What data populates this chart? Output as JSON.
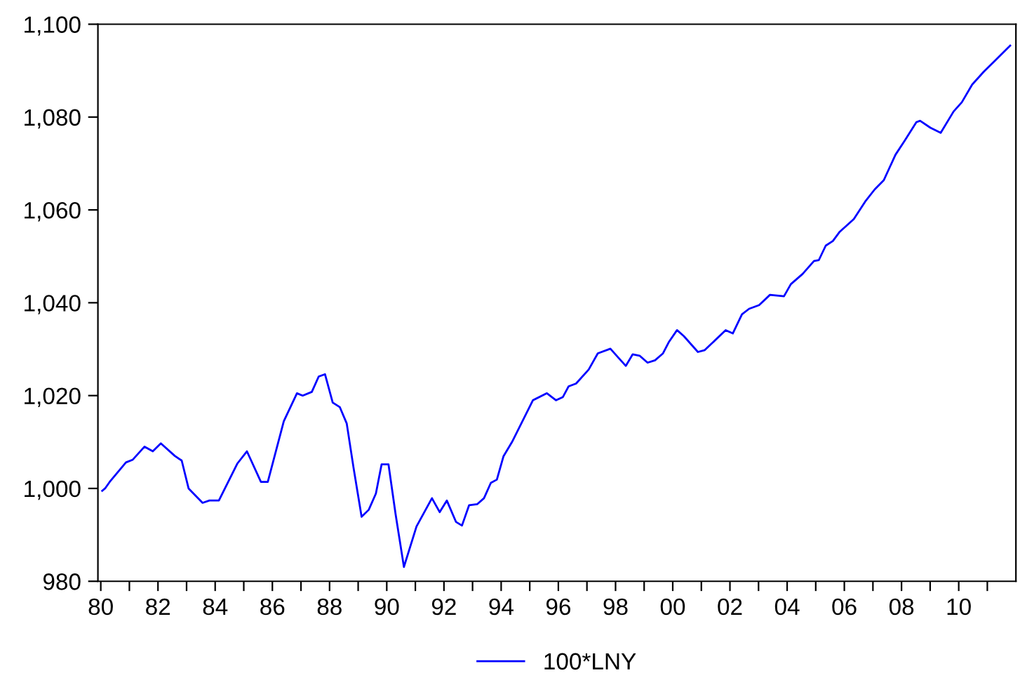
{
  "chart_data": {
    "type": "line",
    "legend": "bottom",
    "grid": false,
    "marker": "none",
    "line_style": "solid",
    "xlim": [
      1979.9,
      2012
    ],
    "ylim": [
      980,
      1100
    ],
    "xticks": [
      {
        "value": 1980,
        "label": "80"
      },
      {
        "value": 1981,
        "label": null
      },
      {
        "value": 1982,
        "label": "82"
      },
      {
        "value": 1983,
        "label": null
      },
      {
        "value": 1984,
        "label": "84"
      },
      {
        "value": 1985,
        "label": null
      },
      {
        "value": 1986,
        "label": "86"
      },
      {
        "value": 1987,
        "label": null
      },
      {
        "value": 1988,
        "label": "88"
      },
      {
        "value": 1989,
        "label": null
      },
      {
        "value": 1990,
        "label": "90"
      },
      {
        "value": 1991,
        "label": null
      },
      {
        "value": 1992,
        "label": "92"
      },
      {
        "value": 1993,
        "label": null
      },
      {
        "value": 1994,
        "label": "94"
      },
      {
        "value": 1995,
        "label": null
      },
      {
        "value": 1996,
        "label": "96"
      },
      {
        "value": 1997,
        "label": null
      },
      {
        "value": 1998,
        "label": "98"
      },
      {
        "value": 1999,
        "label": null
      },
      {
        "value": 2000,
        "label": "00"
      },
      {
        "value": 2001,
        "label": null
      },
      {
        "value": 2002,
        "label": "02"
      },
      {
        "value": 2003,
        "label": null
      },
      {
        "value": 2004,
        "label": "04"
      },
      {
        "value": 2005,
        "label": null
      },
      {
        "value": 2006,
        "label": "06"
      },
      {
        "value": 2007,
        "label": null
      },
      {
        "value": 2008,
        "label": "08"
      },
      {
        "value": 2009,
        "label": null
      },
      {
        "value": 2010,
        "label": "10"
      },
      {
        "value": 2011,
        "label": null
      }
    ],
    "yticks": [
      {
        "value": 980,
        "label": "980"
      },
      {
        "value": 1000,
        "label": "1,000"
      },
      {
        "value": 1020,
        "label": "1,020"
      },
      {
        "value": 1040,
        "label": "1,040"
      },
      {
        "value": 1060,
        "label": "1,060"
      },
      {
        "value": 1080,
        "label": "1,080"
      },
      {
        "value": 1100,
        "label": "1,100"
      }
    ],
    "series": [
      {
        "name": "100*LNY",
        "color": "#0000ff",
        "x": [
          1980.05,
          1980.15,
          1980.31,
          1980.88,
          1981.12,
          1981.53,
          1981.82,
          1982.1,
          1982.59,
          1982.83,
          1983.07,
          1983.56,
          1983.8,
          1984.13,
          1984.78,
          1985.11,
          1985.6,
          1985.84,
          1986.4,
          1986.86,
          1987.06,
          1987.38,
          1987.62,
          1987.84,
          1988.11,
          1988.36,
          1988.6,
          1988.84,
          1989.12,
          1989.37,
          1989.62,
          1989.82,
          1990.06,
          1990.31,
          1990.6,
          1991.04,
          1991.58,
          1991.85,
          1992.1,
          1992.42,
          1992.63,
          1992.88,
          1993.16,
          1993.4,
          1993.64,
          1993.85,
          1994.08,
          1994.38,
          1995.11,
          1995.6,
          1995.92,
          1996.16,
          1996.36,
          1996.62,
          1997.06,
          1997.38,
          1997.82,
          1998.11,
          1998.36,
          1998.6,
          1998.84,
          1999.12,
          1999.38,
          1999.66,
          1999.87,
          2000.15,
          2000.39,
          2000.88,
          2001.12,
          2001.85,
          2002.1,
          2002.42,
          2002.67,
          2003.02,
          2003.4,
          2003.89,
          2004.13,
          2004.54,
          2004.94,
          2005.11,
          2005.35,
          2005.6,
          2005.84,
          2006.33,
          2006.73,
          2007.06,
          2007.38,
          2007.79,
          2008.11,
          2008.52,
          2008.65,
          2009.01,
          2009.37,
          2009.82,
          2010.11,
          2010.47,
          2010.88,
          2011.28,
          2011.8
        ],
        "values": [
          999.5,
          1000.0,
          1001.4,
          1005.6,
          1006.2,
          1009.0,
          1008.0,
          1009.7,
          1007.0,
          1006.0,
          1000.0,
          996.9,
          997.4,
          997.4,
          1005.4,
          1008.0,
          1001.4,
          1001.4,
          1014.5,
          1020.5,
          1020.0,
          1020.8,
          1024.1,
          1024.6,
          1018.5,
          1017.5,
          1014.0,
          1004.4,
          993.9,
          995.4,
          998.9,
          1005.2,
          1005.2,
          994.4,
          983.1,
          991.8,
          997.9,
          994.9,
          997.4,
          992.8,
          992.0,
          996.4,
          996.6,
          997.9,
          1001.2,
          1001.9,
          1006.9,
          1010.0,
          1019.0,
          1020.5,
          1019.0,
          1019.7,
          1022.0,
          1022.6,
          1025.6,
          1029.1,
          1030.1,
          1028.1,
          1026.4,
          1028.9,
          1028.6,
          1027.1,
          1027.6,
          1029.1,
          1031.6,
          1034.1,
          1032.8,
          1029.4,
          1029.8,
          1034.1,
          1033.4,
          1037.5,
          1038.7,
          1039.5,
          1041.7,
          1041.4,
          1044.0,
          1046.2,
          1049.0,
          1049.2,
          1052.3,
          1053.3,
          1055.3,
          1058.0,
          1061.8,
          1064.4,
          1066.4,
          1071.9,
          1074.9,
          1078.9,
          1079.2,
          1077.7,
          1076.6,
          1081.2,
          1083.2,
          1087.0,
          1089.8,
          1092.2,
          1095.4
        ]
      }
    ]
  }
}
